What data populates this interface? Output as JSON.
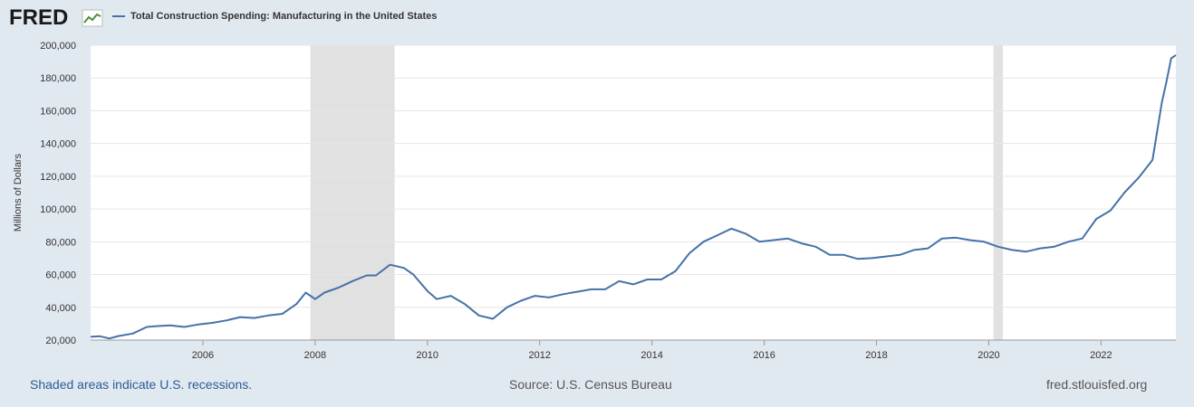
{
  "header": {
    "logo_text": "FRED",
    "logo_icon": "fred-chart-logo-icon",
    "legend_label": "Total Construction Spending: Manufacturing in the United States"
  },
  "footer": {
    "recession_note": "Shaded areas indicate U.S. recessions.",
    "source": "Source: U.S. Census Bureau",
    "site": "fred.stlouisfed.org"
  },
  "colors": {
    "series": "#4572a7",
    "recession": "#e1e1e1",
    "page_background": "#e1e9f0",
    "plot_background": "#ffffff"
  },
  "chart_data": {
    "type": "line",
    "title": "",
    "xlabel": "",
    "ylabel": "Millions of Dollars",
    "ylim": [
      20000,
      200000
    ],
    "xlim": [
      "2004-01",
      "2023-05"
    ],
    "grid": true,
    "legend_placement": "top-left",
    "y_ticks": [
      "20,000",
      "40,000",
      "60,000",
      "80,000",
      "100,000",
      "120,000",
      "140,000",
      "160,000",
      "180,000",
      "200,000"
    ],
    "x_ticks": [
      "2006",
      "2008",
      "2010",
      "2012",
      "2014",
      "2016",
      "2018",
      "2020",
      "2022"
    ],
    "recessions": [
      {
        "start": "2007-12",
        "end": "2009-06"
      },
      {
        "start": "2020-02",
        "end": "2020-04"
      }
    ],
    "series": [
      {
        "name": "Total Construction Spending: Manufacturing in the United States",
        "points": [
          [
            "2004-01",
            22000
          ],
          [
            "2004-03",
            22300
          ],
          [
            "2004-05",
            21000
          ],
          [
            "2004-07",
            22500
          ],
          [
            "2004-10",
            24000
          ],
          [
            "2005-01",
            28000
          ],
          [
            "2005-03",
            28500
          ],
          [
            "2005-06",
            29000
          ],
          [
            "2005-09",
            28000
          ],
          [
            "2005-12",
            29500
          ],
          [
            "2006-03",
            30500
          ],
          [
            "2006-06",
            32000
          ],
          [
            "2006-09",
            34000
          ],
          [
            "2006-12",
            33500
          ],
          [
            "2007-03",
            35000
          ],
          [
            "2007-06",
            36000
          ],
          [
            "2007-09",
            42000
          ],
          [
            "2007-11",
            49000
          ],
          [
            "2008-01",
            45000
          ],
          [
            "2008-03",
            49000
          ],
          [
            "2008-06",
            52000
          ],
          [
            "2008-09",
            56000
          ],
          [
            "2008-12",
            59500
          ],
          [
            "2009-02",
            59500
          ],
          [
            "2009-05",
            66000
          ],
          [
            "2009-08",
            64000
          ],
          [
            "2009-10",
            60000
          ],
          [
            "2010-01",
            50000
          ],
          [
            "2010-03",
            45000
          ],
          [
            "2010-06",
            47000
          ],
          [
            "2010-09",
            42000
          ],
          [
            "2010-12",
            35000
          ],
          [
            "2011-03",
            33000
          ],
          [
            "2011-06",
            40000
          ],
          [
            "2011-09",
            44000
          ],
          [
            "2011-12",
            47000
          ],
          [
            "2012-03",
            46000
          ],
          [
            "2012-06",
            48000
          ],
          [
            "2012-09",
            49500
          ],
          [
            "2012-12",
            51000
          ],
          [
            "2013-03",
            51000
          ],
          [
            "2013-06",
            56000
          ],
          [
            "2013-09",
            54000
          ],
          [
            "2013-12",
            57000
          ],
          [
            "2014-03",
            57000
          ],
          [
            "2014-06",
            62000
          ],
          [
            "2014-09",
            73000
          ],
          [
            "2014-12",
            80000
          ],
          [
            "2015-03",
            84000
          ],
          [
            "2015-06",
            88000
          ],
          [
            "2015-09",
            85000
          ],
          [
            "2015-12",
            80000
          ],
          [
            "2016-03",
            81000
          ],
          [
            "2016-06",
            82000
          ],
          [
            "2016-09",
            79000
          ],
          [
            "2016-12",
            77000
          ],
          [
            "2017-03",
            72000
          ],
          [
            "2017-06",
            72000
          ],
          [
            "2017-09",
            69500
          ],
          [
            "2017-12",
            70000
          ],
          [
            "2018-03",
            71000
          ],
          [
            "2018-06",
            72000
          ],
          [
            "2018-09",
            75000
          ],
          [
            "2018-12",
            76000
          ],
          [
            "2019-03",
            82000
          ],
          [
            "2019-06",
            82500
          ],
          [
            "2019-09",
            81000
          ],
          [
            "2019-12",
            80000
          ],
          [
            "2020-03",
            77000
          ],
          [
            "2020-06",
            75000
          ],
          [
            "2020-09",
            74000
          ],
          [
            "2020-12",
            76000
          ],
          [
            "2021-03",
            77000
          ],
          [
            "2021-06",
            80000
          ],
          [
            "2021-09",
            82000
          ],
          [
            "2021-12",
            94000
          ],
          [
            "2022-03",
            99000
          ],
          [
            "2022-06",
            110000
          ],
          [
            "2022-09",
            119000
          ],
          [
            "2022-12",
            130000
          ],
          [
            "2023-02",
            165000
          ],
          [
            "2023-03",
            178000
          ],
          [
            "2023-04",
            192000
          ],
          [
            "2023-05",
            194000
          ]
        ]
      }
    ]
  }
}
